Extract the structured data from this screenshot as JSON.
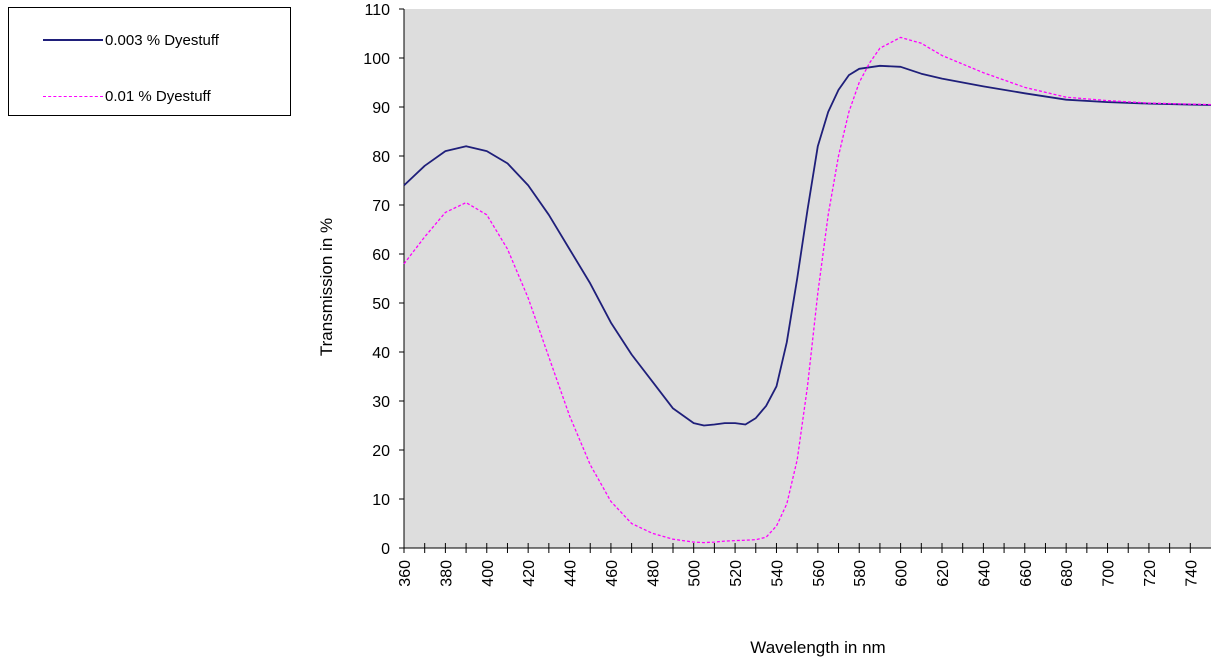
{
  "chart_data": {
    "type": "line",
    "xlabel": "Wavelength  in nm",
    "ylabel": "Transmission  in %",
    "xlim": [
      360,
      750
    ],
    "ylim": [
      0,
      110
    ],
    "x_ticks": [
      360,
      380,
      400,
      420,
      440,
      460,
      480,
      500,
      520,
      540,
      560,
      580,
      600,
      620,
      640,
      660,
      680,
      700,
      720,
      740
    ],
    "y_ticks": [
      0,
      10,
      20,
      30,
      40,
      50,
      60,
      70,
      80,
      90,
      100,
      110
    ],
    "plot_background": "#dddddd",
    "grid": false,
    "legend_position": "top-left",
    "series": [
      {
        "name": "0.003 % Dyestuff",
        "color": "#1f1f7a",
        "style": "solid",
        "x": [
          360,
          370,
          380,
          390,
          400,
          410,
          420,
          430,
          440,
          450,
          460,
          470,
          480,
          490,
          500,
          505,
          510,
          515,
          520,
          525,
          530,
          535,
          540,
          545,
          550,
          555,
          560,
          565,
          570,
          575,
          580,
          590,
          600,
          610,
          620,
          640,
          660,
          680,
          700,
          720,
          740,
          750
        ],
        "y": [
          74,
          78,
          81,
          82,
          81,
          78.5,
          74,
          68,
          61,
          54,
          46,
          39.5,
          34,
          28.5,
          25.5,
          25,
          25.2,
          25.5,
          25.5,
          25.2,
          26.5,
          29,
          33,
          42,
          55,
          69,
          82,
          89,
          93.5,
          96.5,
          97.8,
          98.4,
          98.2,
          96.8,
          95.8,
          94.2,
          92.8,
          91.5,
          91,
          90.7,
          90.5,
          90.4
        ]
      },
      {
        "name": "0.01 % Dyestuff",
        "color": "#ff00ff",
        "style": "dashed",
        "x": [
          360,
          370,
          380,
          390,
          400,
          410,
          420,
          430,
          440,
          450,
          460,
          470,
          480,
          490,
          500,
          505,
          510,
          515,
          520,
          525,
          530,
          535,
          540,
          545,
          550,
          555,
          560,
          565,
          570,
          575,
          580,
          585,
          590,
          600,
          610,
          620,
          640,
          660,
          680,
          700,
          720,
          740,
          750
        ],
        "y": [
          58,
          63.5,
          68.5,
          70.5,
          68,
          61,
          51,
          39,
          27,
          17,
          9.5,
          5,
          3,
          1.8,
          1.2,
          1.1,
          1.2,
          1.4,
          1.5,
          1.6,
          1.7,
          2.2,
          4.5,
          9,
          18,
          33,
          52,
          68,
          80,
          89,
          95,
          99,
          102,
          104.2,
          103,
          100.5,
          97,
          94,
          92,
          91.3,
          90.8,
          90.6,
          90.5
        ]
      }
    ]
  }
}
